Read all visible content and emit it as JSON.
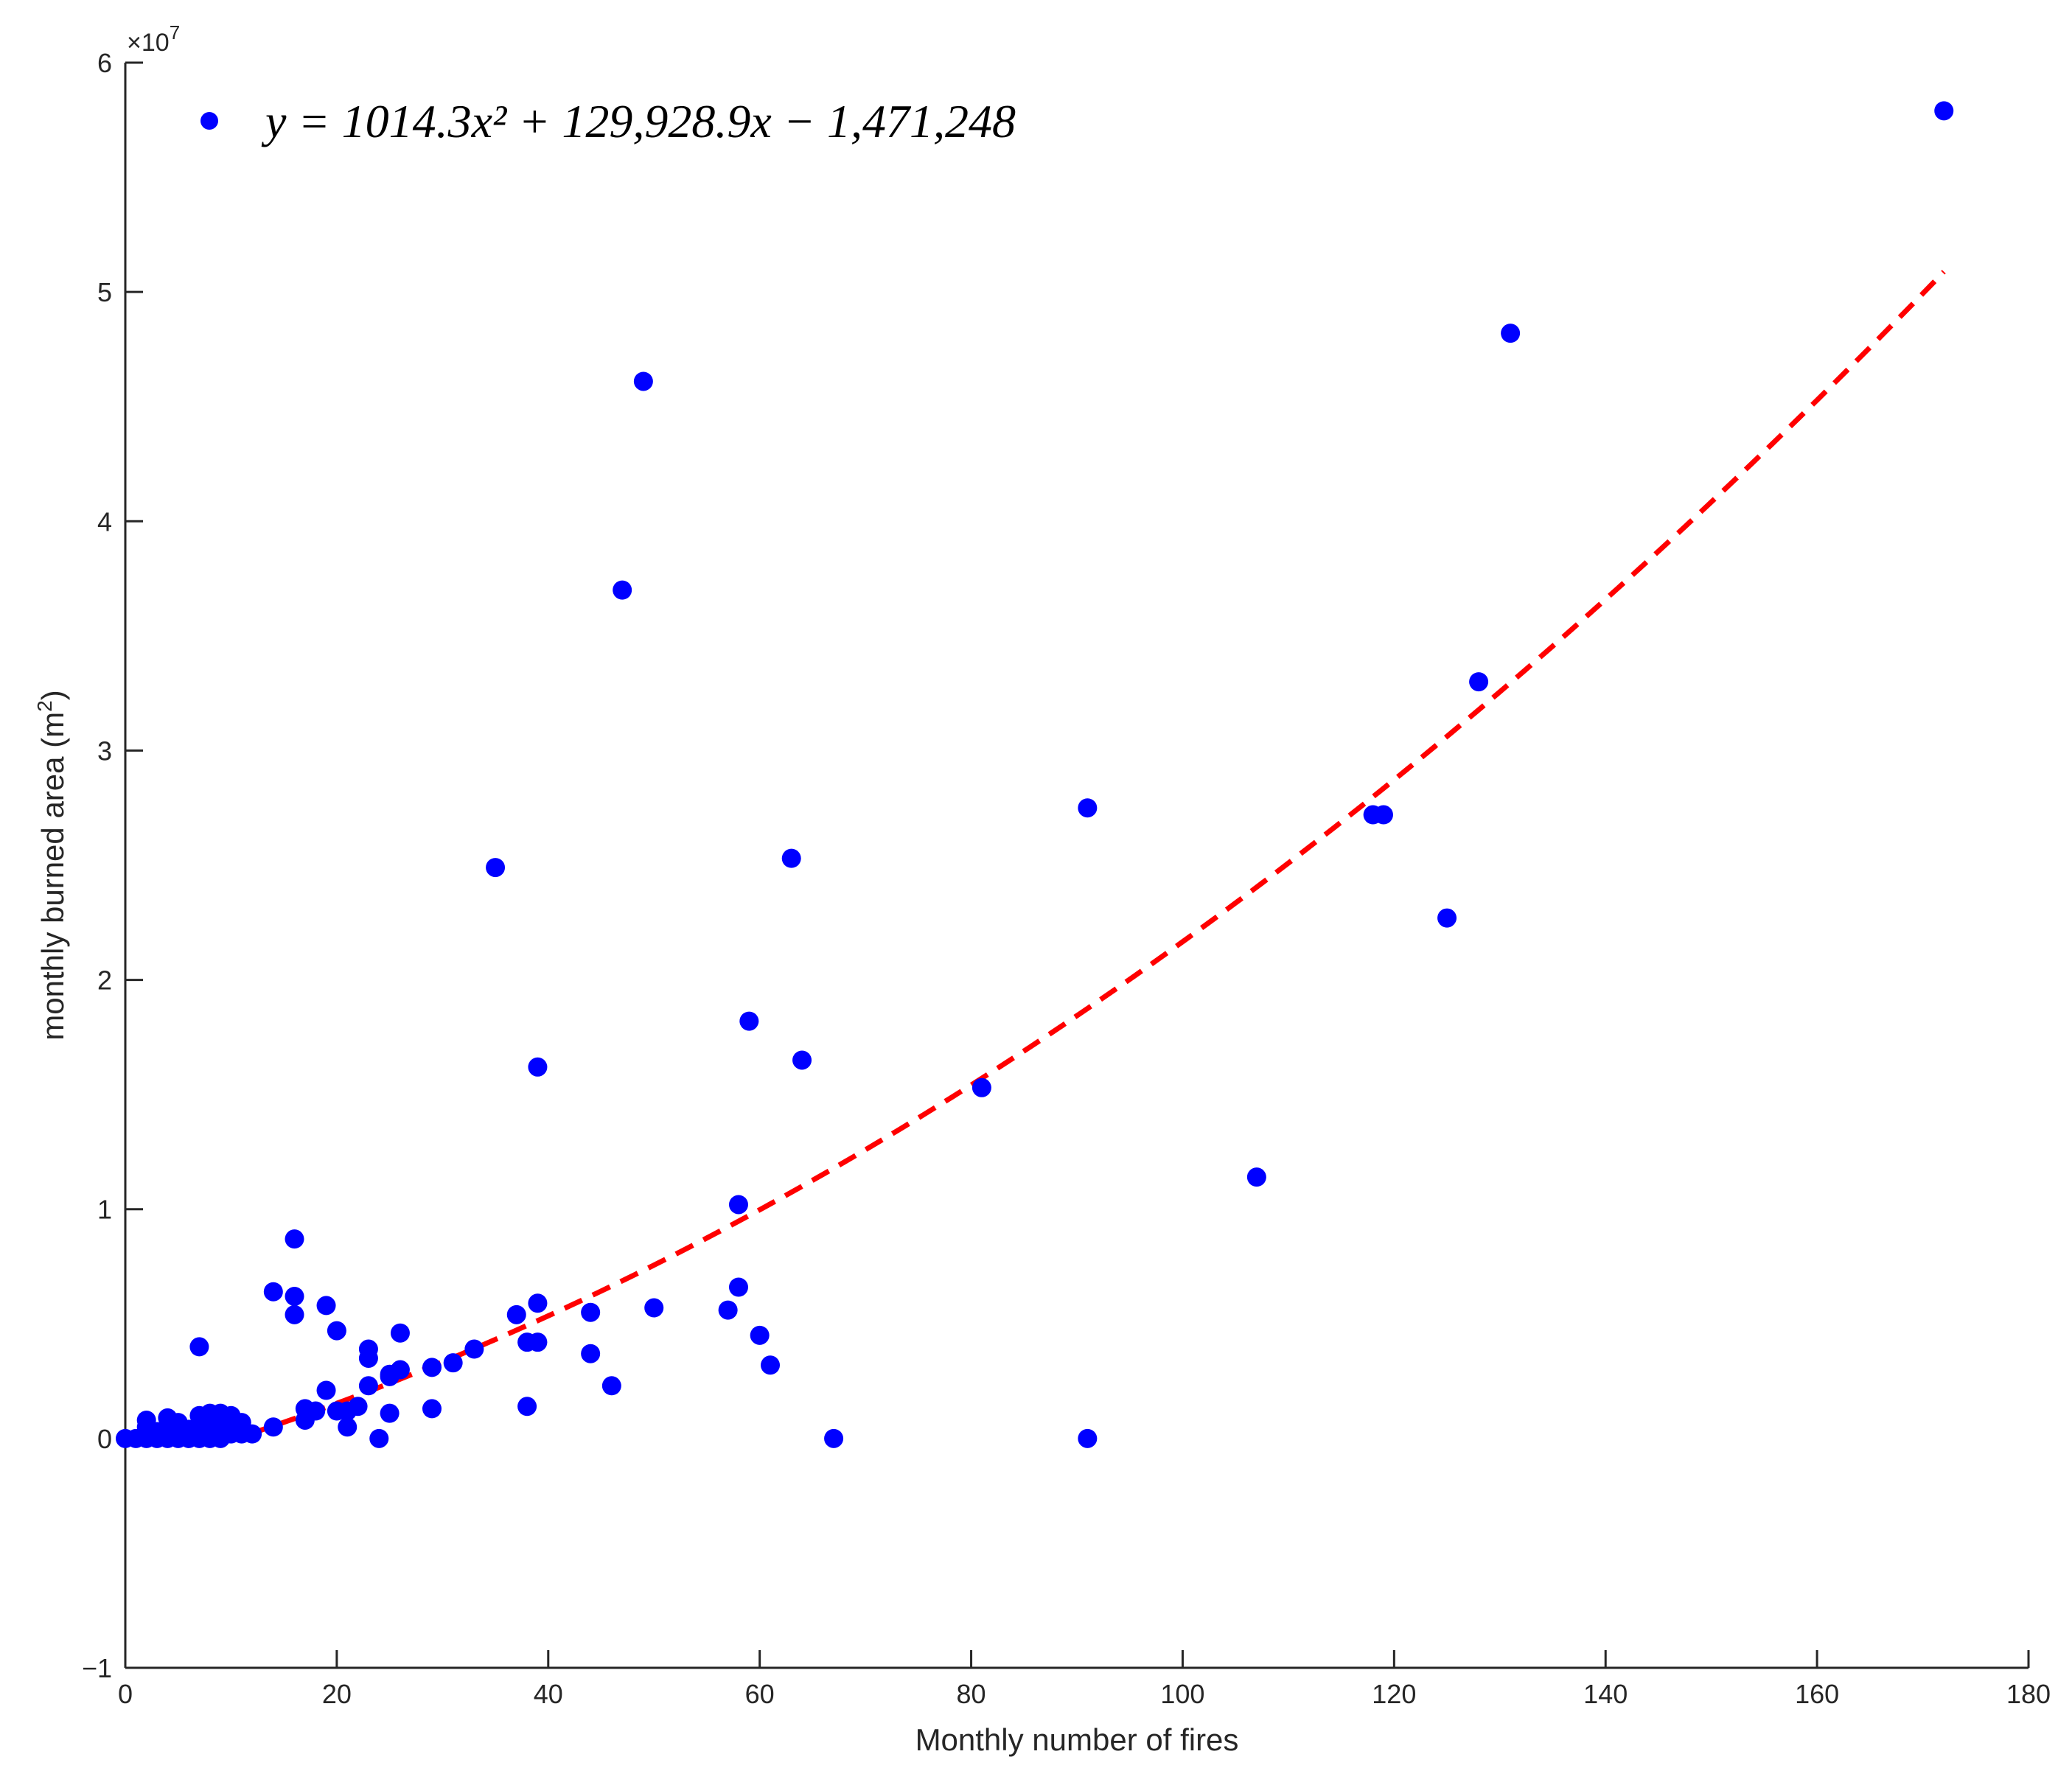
{
  "chart_data": {
    "type": "scatter",
    "xlabel": "Monthly number of fires",
    "ylabel": "monthly burned area (m",
    "ylabel_sup": "2",
    "ylabel_close": ")",
    "y_exponent_label": "×10",
    "y_exponent_sup": "7",
    "xlim": [
      0,
      180
    ],
    "ylim": [
      -1,
      6
    ],
    "y_scale_factor": 10000000,
    "x_ticks": [
      0,
      20,
      40,
      60,
      80,
      100,
      120,
      140,
      160,
      180
    ],
    "y_ticks": [
      -1,
      0,
      1,
      2,
      3,
      4,
      5,
      6
    ],
    "grid": false,
    "legend": {
      "placement": "top-left",
      "entries": [
        "y = 1014.3x² + 129,928.9x − 1,471,248"
      ]
    },
    "colors": {
      "points": "#0000ff",
      "fit": "#ff0000",
      "axis": "#262626"
    },
    "series": [
      {
        "kind": "points",
        "points": [
          [
            0,
            0
          ],
          [
            1,
            0
          ],
          [
            2,
            0
          ],
          [
            2,
            0.05
          ],
          [
            2,
            0.08
          ],
          [
            3,
            0
          ],
          [
            3,
            0.03
          ],
          [
            4,
            0
          ],
          [
            4,
            0.05
          ],
          [
            4,
            0.09
          ],
          [
            5,
            0
          ],
          [
            5,
            0.05
          ],
          [
            5,
            0.07
          ],
          [
            6,
            0
          ],
          [
            6,
            0.04
          ],
          [
            7,
            0
          ],
          [
            7,
            0.06
          ],
          [
            7,
            0.1
          ],
          [
            7,
            0.4
          ],
          [
            8,
            0
          ],
          [
            8,
            0.06
          ],
          [
            8,
            0.11
          ],
          [
            9,
            0
          ],
          [
            9,
            0.05
          ],
          [
            9,
            0.11
          ],
          [
            10,
            0.02
          ],
          [
            10,
            0.07
          ],
          [
            10,
            0.1
          ],
          [
            11,
            0.02
          ],
          [
            11,
            0.07
          ],
          [
            12,
            0.02
          ],
          [
            14,
            0.05
          ],
          [
            14,
            0.64
          ],
          [
            16,
            0.54
          ],
          [
            16,
            0.62
          ],
          [
            16,
            0.87
          ],
          [
            17,
            0.08
          ],
          [
            17,
            0.13
          ],
          [
            18,
            0.12
          ],
          [
            19,
            0.21
          ],
          [
            19,
            0.58
          ],
          [
            20,
            0.12
          ],
          [
            20,
            0.47
          ],
          [
            21,
            0.05
          ],
          [
            21,
            0.12
          ],
          [
            22,
            0.14
          ],
          [
            23,
            0.23
          ],
          [
            23,
            0.35
          ],
          [
            23,
            0.39
          ],
          [
            24,
            0
          ],
          [
            25,
            0.11
          ],
          [
            25,
            0.27
          ],
          [
            25,
            0.28
          ],
          [
            26,
            0.3
          ],
          [
            26,
            0.46
          ],
          [
            29,
            0.13
          ],
          [
            29,
            0.31
          ],
          [
            31,
            0.33
          ],
          [
            33,
            0.39
          ],
          [
            35,
            2.49
          ],
          [
            37,
            0.54
          ],
          [
            38,
            0.14
          ],
          [
            38,
            0.42
          ],
          [
            39,
            0.42
          ],
          [
            39,
            0.59
          ],
          [
            39,
            1.62
          ],
          [
            44,
            0.37
          ],
          [
            44,
            0.55
          ],
          [
            46,
            0.23
          ],
          [
            47,
            3.7
          ],
          [
            49,
            4.61
          ],
          [
            50,
            0.57
          ],
          [
            57,
            0.56
          ],
          [
            58,
            0.66
          ],
          [
            58,
            1.02
          ],
          [
            59,
            1.82
          ],
          [
            60,
            0.45
          ],
          [
            61,
            0.32
          ],
          [
            63,
            2.53
          ],
          [
            64,
            1.65
          ],
          [
            67,
            0
          ],
          [
            81,
            1.53
          ],
          [
            91,
            0
          ],
          [
            91,
            2.75
          ],
          [
            107,
            1.14
          ],
          [
            118,
            2.72
          ],
          [
            119,
            2.72
          ],
          [
            125,
            2.27
          ],
          [
            128,
            3.3
          ],
          [
            131,
            4.82
          ],
          [
            172,
            5.79
          ]
        ]
      },
      {
        "kind": "quadratic-fit",
        "coefficients": [
          1014.3,
          129928.9,
          -1471248
        ],
        "x_range": [
          0,
          172
        ]
      }
    ]
  }
}
